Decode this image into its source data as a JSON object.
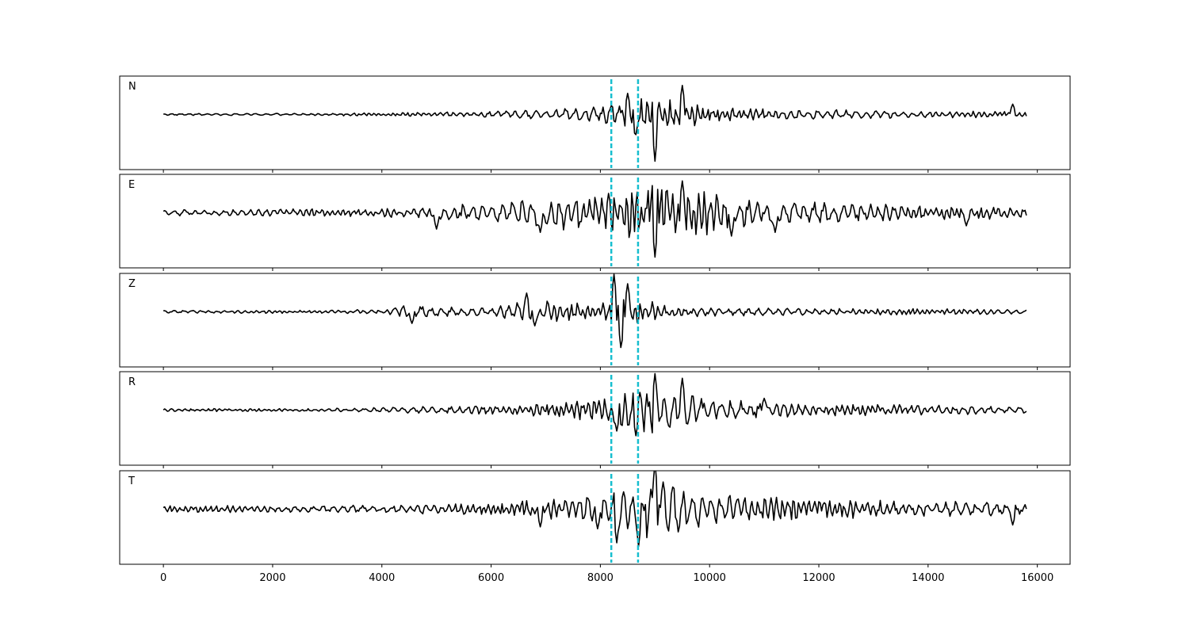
{
  "chart_data": {
    "type": "line",
    "title": "",
    "xlabel": "",
    "ylabel": "",
    "xlim": [
      -800,
      16600
    ],
    "x_ticks": [
      0,
      2000,
      4000,
      6000,
      8000,
      10000,
      12000,
      14000,
      16000
    ],
    "x_tick_labels": [
      "0",
      "2000",
      "4000",
      "6000",
      "8000",
      "10000",
      "12000",
      "14000",
      "16000"
    ],
    "x_range": [
      0,
      15800
    ],
    "grid": false,
    "trace_color": "#000000",
    "marker_color": "#17becf",
    "vertical_markers": [
      8200,
      8690
    ],
    "series": [
      {
        "name": "N",
        "label": "N",
        "envelope": [
          [
            0,
            0.02
          ],
          [
            2000,
            0.02
          ],
          [
            4000,
            0.03
          ],
          [
            5500,
            0.05
          ],
          [
            6800,
            0.09
          ],
          [
            7800,
            0.15
          ],
          [
            8200,
            0.22
          ],
          [
            8600,
            0.38
          ],
          [
            9000,
            0.45
          ],
          [
            9500,
            0.3
          ],
          [
            10200,
            0.15
          ],
          [
            11500,
            0.1
          ],
          [
            13000,
            0.08
          ],
          [
            15800,
            0.06
          ]
        ],
        "peaks": [
          [
            9000,
            -1.0
          ],
          [
            9500,
            0.62
          ],
          [
            8500,
            0.45
          ],
          [
            8640,
            -0.5
          ],
          [
            15550,
            0.22
          ]
        ]
      },
      {
        "name": "E",
        "label": "E",
        "envelope": [
          [
            0,
            0.07
          ],
          [
            2000,
            0.07
          ],
          [
            4000,
            0.09
          ],
          [
            5000,
            0.16
          ],
          [
            6000,
            0.2
          ],
          [
            7000,
            0.32
          ],
          [
            8000,
            0.38
          ],
          [
            8600,
            0.52
          ],
          [
            9000,
            0.62
          ],
          [
            9500,
            0.55
          ],
          [
            10500,
            0.35
          ],
          [
            12000,
            0.22
          ],
          [
            14000,
            0.15
          ],
          [
            15800,
            0.12
          ]
        ],
        "peaks": [
          [
            9000,
            -0.95
          ],
          [
            9500,
            0.68
          ],
          [
            5000,
            -0.35
          ],
          [
            6900,
            -0.42
          ],
          [
            10400,
            -0.5
          ],
          [
            11200,
            -0.42
          ],
          [
            14700,
            -0.28
          ]
        ]
      },
      {
        "name": "Z",
        "label": "Z",
        "envelope": [
          [
            0,
            0.03
          ],
          [
            3000,
            0.03
          ],
          [
            4000,
            0.05
          ],
          [
            4500,
            0.16
          ],
          [
            5000,
            0.1
          ],
          [
            6000,
            0.08
          ],
          [
            6700,
            0.26
          ],
          [
            7200,
            0.22
          ],
          [
            8000,
            0.16
          ],
          [
            8250,
            0.4
          ],
          [
            8450,
            0.55
          ],
          [
            8700,
            0.28
          ],
          [
            9200,
            0.12
          ],
          [
            10500,
            0.08
          ],
          [
            15800,
            0.05
          ]
        ],
        "peaks": [
          [
            8250,
            0.8
          ],
          [
            8380,
            -0.82
          ],
          [
            8500,
            0.6
          ],
          [
            4550,
            -0.25
          ],
          [
            6650,
            0.4
          ],
          [
            6800,
            -0.3
          ]
        ]
      },
      {
        "name": "R",
        "label": "R",
        "envelope": [
          [
            0,
            0.03
          ],
          [
            3000,
            0.03
          ],
          [
            4500,
            0.06
          ],
          [
            5000,
            0.08
          ],
          [
            6500,
            0.1
          ],
          [
            7500,
            0.2
          ],
          [
            8200,
            0.25
          ],
          [
            8700,
            0.45
          ],
          [
            9000,
            0.52
          ],
          [
            9500,
            0.38
          ],
          [
            10500,
            0.2
          ],
          [
            12000,
            0.14
          ],
          [
            14000,
            0.1
          ],
          [
            15800,
            0.07
          ]
        ],
        "peaks": [
          [
            8990,
            -0.95
          ],
          [
            9000,
            0.78
          ],
          [
            9500,
            0.68
          ],
          [
            8300,
            -0.45
          ],
          [
            8650,
            -0.55
          ],
          [
            11000,
            0.25
          ]
        ]
      },
      {
        "name": "T",
        "label": "T",
        "envelope": [
          [
            0,
            0.07
          ],
          [
            2000,
            0.07
          ],
          [
            4000,
            0.08
          ],
          [
            6000,
            0.12
          ],
          [
            7000,
            0.2
          ],
          [
            8000,
            0.28
          ],
          [
            8400,
            0.4
          ],
          [
            8700,
            0.55
          ],
          [
            9000,
            0.6
          ],
          [
            9600,
            0.4
          ],
          [
            10500,
            0.28
          ],
          [
            12000,
            0.2
          ],
          [
            14000,
            0.18
          ],
          [
            15800,
            0.14
          ]
        ],
        "peaks": [
          [
            9000,
            1.0
          ],
          [
            8300,
            -0.72
          ],
          [
            8700,
            -0.8
          ],
          [
            9150,
            0.58
          ],
          [
            6900,
            -0.38
          ],
          [
            7950,
            -0.42
          ],
          [
            15550,
            -0.34
          ]
        ]
      }
    ]
  }
}
